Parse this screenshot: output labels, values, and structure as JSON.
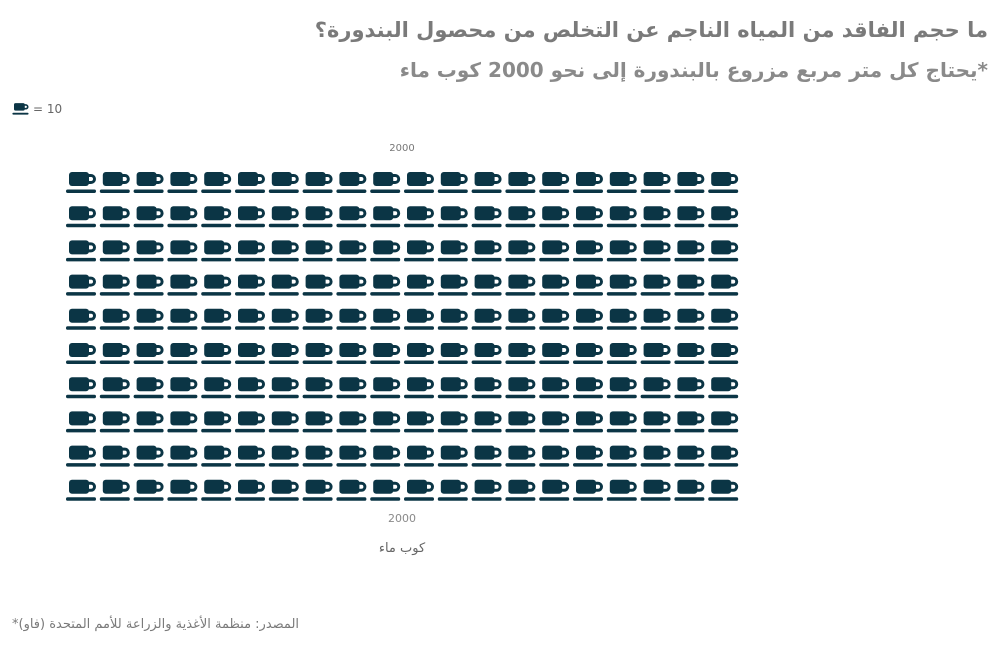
{
  "title": "ما حجم الفاقد من المياه الناجم عن التخلص من محصول البندورة؟",
  "subtitle": "*يحتاج كل متر مربع مزروع بالبندورة إلى نحو 2000 كوب ماء",
  "legend": {
    "icon": "cup-icon",
    "text": "= 10"
  },
  "source": "المصدر: منظمة الأغذية والزراعة للأمم المتحدة (فاو)*",
  "colors": {
    "icon": "#0b3545",
    "title": "#7a7a7a"
  },
  "chart_data": {
    "type": "pictograph",
    "unit_icon": "cup-icon",
    "unit_value": 10,
    "total": 2000,
    "columns": 20,
    "rows": 10,
    "top_label": "2000",
    "bottom_label": "2000",
    "unit_label": "كوب ماء"
  }
}
